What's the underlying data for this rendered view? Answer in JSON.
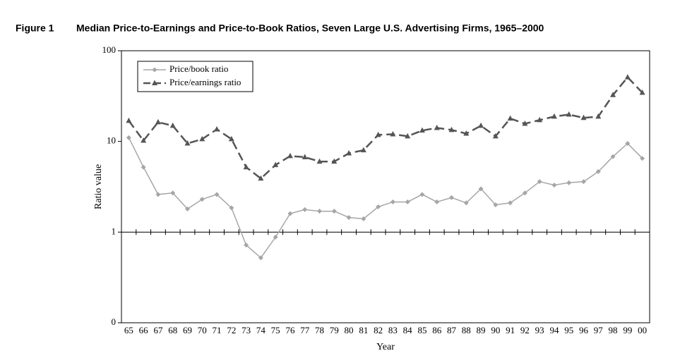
{
  "chart_data": {
    "type": "line",
    "figure_label": "Figure 1",
    "title": "Median Price-to-Earnings and Price-to-Book Ratios, Seven Large U.S. Advertising Firms, 1965–2000",
    "xlabel": "Year",
    "ylabel": "Ratio value",
    "categories": [
      "65",
      "66",
      "67",
      "68",
      "69",
      "70",
      "71",
      "72",
      "73",
      "74",
      "75",
      "76",
      "77",
      "78",
      "79",
      "80",
      "81",
      "82",
      "83",
      "84",
      "85",
      "86",
      "87",
      "88",
      "89",
      "90",
      "91",
      "92",
      "93",
      "94",
      "95",
      "96",
      "97",
      "98",
      "99",
      "00"
    ],
    "series": [
      {
        "name": "Price/book ratio",
        "color": "#a6a6a6",
        "marker": "diamond",
        "line_style": "solid",
        "values": [
          11,
          5.2,
          2.6,
          2.7,
          1.8,
          2.3,
          2.6,
          1.85,
          0.72,
          0.52,
          0.88,
          1.6,
          1.77,
          1.7,
          1.7,
          1.45,
          1.4,
          1.9,
          2.15,
          2.15,
          2.6,
          2.15,
          2.4,
          2.1,
          3.0,
          2.0,
          2.1,
          2.7,
          3.6,
          3.3,
          3.5,
          3.6,
          4.65,
          6.8,
          9.5,
          6.5
        ]
      },
      {
        "name": "Price/earnings ratio",
        "color": "#555555",
        "marker": "triangle",
        "line_style": "dashed",
        "values": [
          16.9,
          10.2,
          16.3,
          14.9,
          9.5,
          10.6,
          13.6,
          10.6,
          5.2,
          3.9,
          5.5,
          6.9,
          6.7,
          6.0,
          6.0,
          7.4,
          8.0,
          11.8,
          12.0,
          11.4,
          13.2,
          14.1,
          13.4,
          12.2,
          14.9,
          11.4,
          17.9,
          15.7,
          17.2,
          18.8,
          19.8,
          18.2,
          18.8,
          32.5,
          51,
          34.5
        ]
      }
    ],
    "ylog": true,
    "ylim": [
      0.1,
      100
    ],
    "yticks": [
      {
        "value": 0.1,
        "label": "0"
      },
      1,
      10,
      100
    ],
    "xaxis_at": 1,
    "legend": "upper left"
  }
}
